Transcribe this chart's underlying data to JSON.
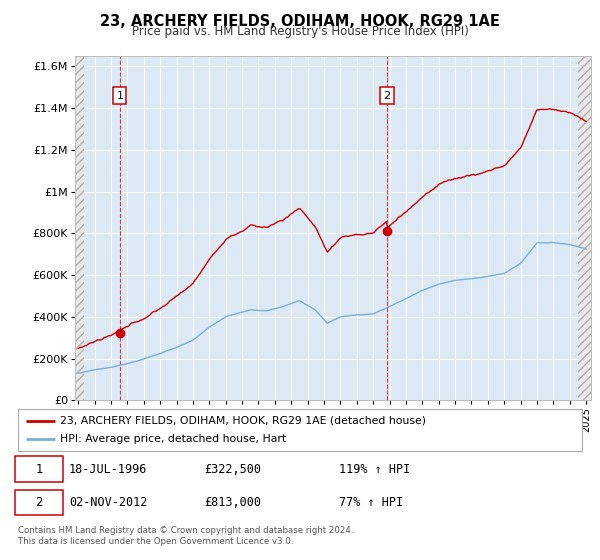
{
  "title": "23, ARCHERY FIELDS, ODIHAM, HOOK, RG29 1AE",
  "subtitle": "Price paid vs. HM Land Registry's House Price Index (HPI)",
  "ylim": [
    0,
    1650000
  ],
  "yticks": [
    0,
    200000,
    400000,
    600000,
    800000,
    1000000,
    1200000,
    1400000,
    1600000
  ],
  "ytick_labels": [
    "£0",
    "£200K",
    "£400K",
    "£600K",
    "£800K",
    "£1M",
    "£1.2M",
    "£1.4M",
    "£1.6M"
  ],
  "sale1_year": 1996.54,
  "sale1_price": 322500,
  "sale2_year": 2012.84,
  "sale2_price": 813000,
  "red_line_color": "#cc0000",
  "blue_line_color": "#7aaed6",
  "legend1": "23, ARCHERY FIELDS, ODIHAM, HOOK, RG29 1AE (detached house)",
  "legend2": "HPI: Average price, detached house, Hart",
  "footer": "Contains HM Land Registry data © Crown copyright and database right 2024.\nThis data is licensed under the Open Government Licence v3.0.",
  "table_row1": [
    "1",
    "18-JUL-1996",
    "£322,500",
    "119% ↑ HPI"
  ],
  "table_row2": [
    "2",
    "02-NOV-2012",
    "£813,000",
    "77% ↑ HPI"
  ],
  "bg_color": "#dce9f5",
  "xmin": 1994,
  "xmax": 2025
}
